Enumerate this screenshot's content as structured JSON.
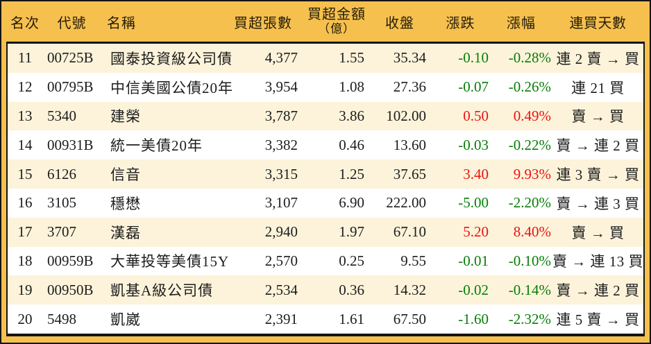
{
  "header": {
    "rank": "名次",
    "code": "代號",
    "name": "名稱",
    "shares": "買超張數",
    "amount_line1": "買超金額",
    "amount_line2": "（億）",
    "close": "收盤",
    "change": "漲跌",
    "pct": "漲幅",
    "streak": "連買天數"
  },
  "colors": {
    "up_red": "#ee1111",
    "down_green": "#077d07",
    "header_bg": "#f6c04f",
    "row_cream": "#fcf3da",
    "row_white": "#ffffff",
    "border": "#141414",
    "text": "#1c1c1c"
  },
  "chart_data": {
    "type": "table",
    "columns": [
      "名次",
      "代號",
      "名稱",
      "買超張數",
      "買超金額（億）",
      "收盤",
      "漲跌",
      "漲幅",
      "連買天數"
    ],
    "rows": [
      {
        "rank": "11",
        "code": "00725B",
        "name": "國泰投資級公司債",
        "shares": "4,377",
        "amount": "1.55",
        "close": "35.34",
        "change": "-0.10",
        "pct": "-0.28%",
        "streak": "連 2 賣 → 買"
      },
      {
        "rank": "12",
        "code": "00795B",
        "name": "中信美國公債20年",
        "shares": "3,954",
        "amount": "1.08",
        "close": "27.36",
        "change": "-0.07",
        "pct": "-0.26%",
        "streak": "連 21 買"
      },
      {
        "rank": "13",
        "code": "5340",
        "name": "建榮",
        "shares": "3,787",
        "amount": "3.86",
        "close": "102.00",
        "change": "0.50",
        "pct": "0.49%",
        "streak": "賣 → 買"
      },
      {
        "rank": "14",
        "code": "00931B",
        "name": "統一美債20年",
        "shares": "3,382",
        "amount": "0.46",
        "close": "13.60",
        "change": "-0.03",
        "pct": "-0.22%",
        "streak": "賣 → 連 2 買"
      },
      {
        "rank": "15",
        "code": "6126",
        "name": "信音",
        "shares": "3,315",
        "amount": "1.25",
        "close": "37.65",
        "change": "3.40",
        "pct": "9.93%",
        "streak": "連 3 賣 → 買"
      },
      {
        "rank": "16",
        "code": "3105",
        "name": "穩懋",
        "shares": "3,107",
        "amount": "6.90",
        "close": "222.00",
        "change": "-5.00",
        "pct": "-2.20%",
        "streak": "賣 → 連 3 買"
      },
      {
        "rank": "17",
        "code": "3707",
        "name": "漢磊",
        "shares": "2,940",
        "amount": "1.97",
        "close": "67.10",
        "change": "5.20",
        "pct": "8.40%",
        "streak": "賣 → 買"
      },
      {
        "rank": "18",
        "code": "00959B",
        "name": "大華投等美債15Y",
        "shares": "2,570",
        "amount": "0.25",
        "close": "9.55",
        "change": "-0.01",
        "pct": "-0.10%",
        "streak": "賣 → 連 13 買"
      },
      {
        "rank": "19",
        "code": "00950B",
        "name": "凱基A級公司債",
        "shares": "2,534",
        "amount": "0.36",
        "close": "14.32",
        "change": "-0.02",
        "pct": "-0.14%",
        "streak": "賣 → 連 2 買"
      },
      {
        "rank": "20",
        "code": "5498",
        "name": "凱崴",
        "shares": "2,391",
        "amount": "1.61",
        "close": "67.50",
        "change": "-1.60",
        "pct": "-2.32%",
        "streak": "連 5 賣 → 買"
      }
    ]
  }
}
